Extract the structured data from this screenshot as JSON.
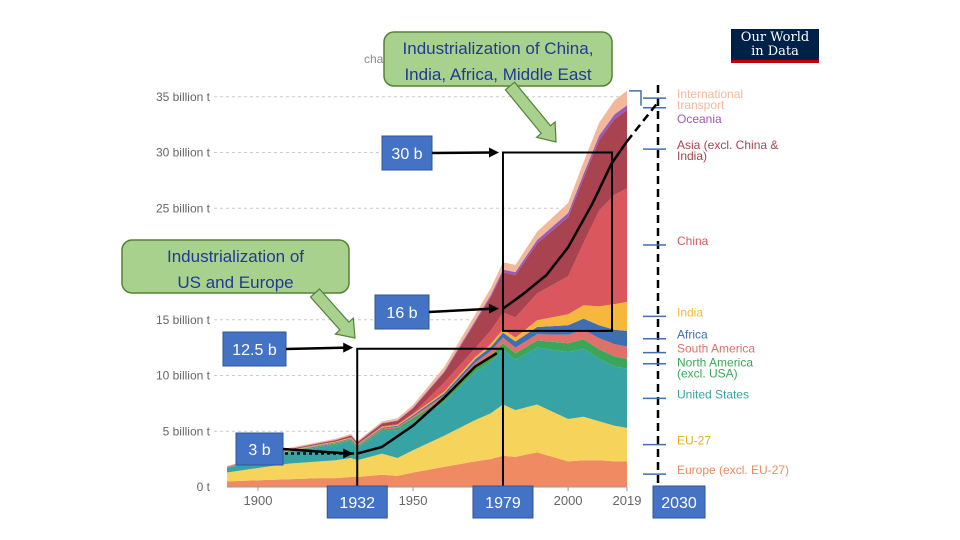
{
  "header": {
    "logo_line1": "Our World",
    "logo_line2": "in Data",
    "subtitle_fragment": "cha"
  },
  "chart_data": {
    "type": "area",
    "ylabel": "",
    "xlabel": "",
    "xlim": [
      1890,
      2019
    ],
    "ylim": [
      0,
      36
    ],
    "y_ticks": [
      {
        "value": 0,
        "label": "0 t"
      },
      {
        "value": 5,
        "label": "5 billion t"
      },
      {
        "value": 10,
        "label": "10 billion t"
      },
      {
        "value": 15,
        "label": "15 billion t"
      },
      {
        "value": 25,
        "label": "25 billion t"
      },
      {
        "value": 30,
        "label": "30 billion t"
      },
      {
        "value": 35,
        "label": "35 billion t"
      }
    ],
    "x_ticks": [
      {
        "value": 1900,
        "label": "1900"
      },
      {
        "value": 1950,
        "label": "1950"
      },
      {
        "value": 2000,
        "label": "2000"
      },
      {
        "value": 2019,
        "label": "2019"
      }
    ],
    "grid": true,
    "x": [
      1890,
      1900,
      1910,
      1920,
      1925,
      1930,
      1932,
      1940,
      1945,
      1950,
      1960,
      1970,
      1975,
      1979,
      1983,
      1990,
      2000,
      2005,
      2010,
      2015,
      2019
    ],
    "series": [
      {
        "name": "Europe (excl. EU-27)",
        "color": "#ef8a62",
        "values": [
          0.5,
          0.6,
          0.7,
          0.8,
          0.8,
          0.9,
          0.9,
          1.1,
          1.0,
          1.3,
          1.8,
          2.3,
          2.5,
          2.8,
          2.7,
          3.1,
          2.3,
          2.4,
          2.4,
          2.3,
          2.3
        ]
      },
      {
        "name": "EU-27",
        "color": "#f6d35a",
        "values": [
          0.8,
          1.1,
          1.4,
          1.5,
          1.6,
          1.7,
          1.5,
          1.9,
          1.6,
          2.0,
          2.8,
          3.7,
          4.1,
          4.6,
          4.2,
          4.3,
          3.8,
          3.9,
          3.5,
          3.2,
          3.0
        ]
      },
      {
        "name": "United States",
        "color": "#38a3a5",
        "values": [
          0.4,
          0.7,
          1.0,
          1.3,
          1.4,
          1.5,
          1.1,
          2.0,
          2.5,
          2.6,
          3.0,
          4.3,
          4.6,
          4.9,
          4.5,
          5.1,
          6.0,
          6.1,
          5.6,
          5.3,
          5.3
        ]
      },
      {
        "name": "North America (excl. USA)",
        "color": "#3aa65a",
        "values": [
          0.05,
          0.05,
          0.1,
          0.1,
          0.1,
          0.15,
          0.1,
          0.15,
          0.2,
          0.25,
          0.35,
          0.5,
          0.55,
          0.6,
          0.6,
          0.65,
          0.8,
          0.85,
          0.85,
          0.9,
          0.9
        ]
      },
      {
        "name": "South America",
        "color": "#e0706a",
        "values": [
          0.01,
          0.02,
          0.03,
          0.04,
          0.05,
          0.06,
          0.06,
          0.08,
          0.1,
          0.15,
          0.25,
          0.35,
          0.42,
          0.5,
          0.5,
          0.55,
          0.75,
          0.85,
          1.0,
          1.1,
          1.1
        ]
      },
      {
        "name": "Africa",
        "color": "#3e6fb0",
        "values": [
          0.01,
          0.02,
          0.03,
          0.04,
          0.05,
          0.06,
          0.06,
          0.08,
          0.1,
          0.12,
          0.2,
          0.3,
          0.38,
          0.45,
          0.55,
          0.65,
          0.85,
          1.0,
          1.15,
          1.3,
          1.4
        ]
      },
      {
        "name": "India",
        "color": "#f5b83d",
        "values": [
          0.01,
          0.02,
          0.03,
          0.04,
          0.05,
          0.06,
          0.06,
          0.08,
          0.08,
          0.1,
          0.15,
          0.2,
          0.25,
          0.3,
          0.35,
          0.6,
          1.0,
          1.2,
          1.7,
          2.3,
          2.6
        ]
      },
      {
        "name": "China",
        "color": "#d9575d",
        "values": [
          0.01,
          0.02,
          0.02,
          0.02,
          0.03,
          0.04,
          0.05,
          0.05,
          0.05,
          0.08,
          0.8,
          0.8,
          1.2,
          1.5,
          1.8,
          2.4,
          3.4,
          5.6,
          8.6,
          9.8,
          10.2
        ]
      },
      {
        "name": "Asia (excl. China & India)",
        "color": "#a8434f",
        "values": [
          0.03,
          0.05,
          0.08,
          0.1,
          0.12,
          0.15,
          0.15,
          0.25,
          0.3,
          0.45,
          0.9,
          2.3,
          3.0,
          3.6,
          3.8,
          4.5,
          5.3,
          5.8,
          6.3,
          6.8,
          7.0
        ]
      },
      {
        "name": "Oceania",
        "color": "#9a5ab8",
        "values": [
          0.01,
          0.01,
          0.02,
          0.02,
          0.02,
          0.03,
          0.03,
          0.04,
          0.04,
          0.05,
          0.1,
          0.15,
          0.2,
          0.25,
          0.27,
          0.3,
          0.37,
          0.4,
          0.42,
          0.43,
          0.43
        ]
      },
      {
        "name": "International transport",
        "color": "#f3b89a",
        "values": [
          0.05,
          0.08,
          0.1,
          0.1,
          0.1,
          0.1,
          0.1,
          0.15,
          0.2,
          0.25,
          0.4,
          0.55,
          0.6,
          0.65,
          0.65,
          0.75,
          0.9,
          1.05,
          1.15,
          1.25,
          1.3
        ]
      }
    ],
    "legend_placement": "right",
    "right_axis": {
      "label": "2030"
    },
    "annotations": {
      "callout_us_europe": {
        "lines": [
          "Industrialization of",
          "US and Europe"
        ]
      },
      "callout_china": {
        "lines": [
          "Industrialization of China,",
          "India, Africa, Middle East"
        ]
      },
      "boxes": [
        {
          "key": "b3",
          "label": "3 b",
          "value": 3,
          "at_year": 1932
        },
        {
          "key": "b125",
          "label": "12.5 b",
          "value": 12.5,
          "at_year": 1932
        },
        {
          "key": "b16",
          "label": "16 b",
          "value": 16,
          "at_year": 1979
        },
        {
          "key": "b30",
          "label": "30 b",
          "value": 30,
          "at_year": 1979
        }
      ],
      "year_boxes": [
        {
          "label": "1932",
          "year": 1932
        },
        {
          "label": "1979",
          "year": 1979
        }
      ],
      "bracket_years": [
        1932,
        1979,
        2019
      ],
      "trend_1": {
        "years": [
          1932,
          1940,
          1950,
          1960,
          1970,
          1977
        ],
        "values": [
          3,
          3.6,
          5.5,
          8.0,
          10.8,
          12.0
        ]
      },
      "trend_2": {
        "years": [
          1979,
          1985,
          1993,
          2000,
          2008,
          2014,
          2019,
          2030
        ],
        "values": [
          16,
          17.2,
          19.0,
          21.5,
          25.5,
          29.0,
          31.0,
          34.5
        ]
      }
    }
  }
}
